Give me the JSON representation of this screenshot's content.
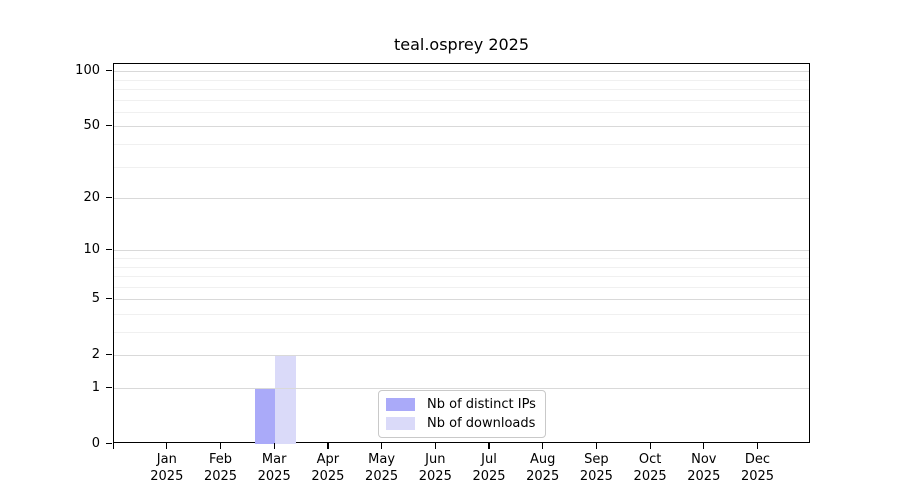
{
  "chart_data": {
    "type": "bar",
    "title": "teal.osprey 2025",
    "categories": [
      "Jan 2025",
      "Feb 2025",
      "Mar 2025",
      "Apr 2025",
      "May 2025",
      "Jun 2025",
      "Jul 2025",
      "Aug 2025",
      "Sep 2025",
      "Oct 2025",
      "Nov 2025",
      "Dec 2025"
    ],
    "x_months": [
      "Jan",
      "Feb",
      "Mar",
      "Apr",
      "May",
      "Jun",
      "Jul",
      "Aug",
      "Sep",
      "Oct",
      "Nov",
      "Dec"
    ],
    "x_year": "2025",
    "series": [
      {
        "name": "Nb of distinct IPs",
        "color": "#aaaaf9",
        "values": [
          0,
          0,
          1,
          0,
          0,
          0,
          0,
          0,
          0,
          0,
          0,
          0
        ]
      },
      {
        "name": "Nb of downloads",
        "color": "#dadaf9",
        "values": [
          0,
          0,
          2,
          0,
          0,
          0,
          0,
          0,
          0,
          0,
          0,
          0
        ]
      }
    ],
    "xlabel": "",
    "ylabel": "",
    "yscale": "log10(1+y)",
    "ylim": [
      0,
      109
    ],
    "yticks": [
      0,
      1,
      2,
      5,
      10,
      20,
      50,
      100
    ],
    "minor_yticks": [
      3,
      4,
      6,
      7,
      8,
      9,
      30,
      40,
      60,
      70,
      80,
      90
    ],
    "grid": "horizontal",
    "legend_position": "lower center",
    "colors": {
      "major_grid": "#d9d9d9",
      "minor_grid": "#f0f0f0",
      "spine": "#000000",
      "background": "#ffffff"
    }
  }
}
